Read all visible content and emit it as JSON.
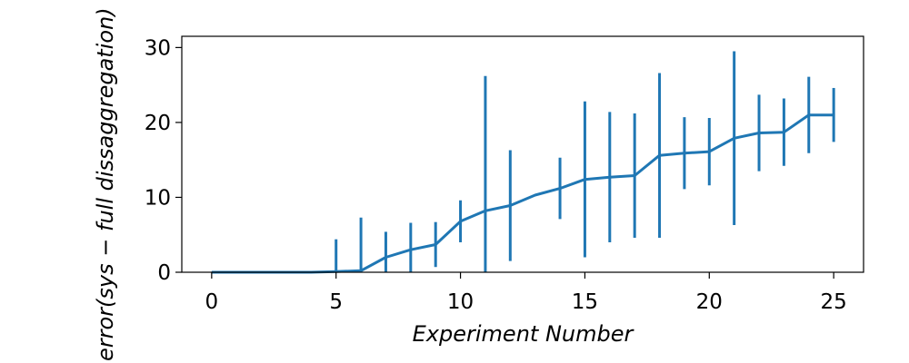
{
  "chart_data": {
    "type": "line",
    "xlabel": "Experiment Number",
    "ylabel": "error(sys − full dissaggregation)",
    "xlim": [
      -1.2,
      26.2
    ],
    "ylim": [
      0,
      31.5
    ],
    "xticks": [
      0,
      5,
      10,
      15,
      20,
      25
    ],
    "yticks": [
      0,
      10,
      20,
      30
    ],
    "grid": false,
    "line_color": "#1f77b4",
    "series": [
      {
        "x": [
          0,
          1,
          2,
          3,
          4,
          5,
          6,
          7,
          8,
          9,
          10,
          11,
          12,
          13,
          14,
          15,
          16,
          17,
          18,
          19,
          20,
          21,
          22,
          23,
          24,
          25
        ],
        "values": [
          0,
          0,
          0,
          0,
          0,
          0.1,
          0.2,
          2.0,
          3.0,
          3.7,
          6.8,
          8.2,
          8.9,
          10.3,
          11.2,
          12.4,
          12.7,
          12.9,
          15.6,
          15.9,
          16.1,
          17.9,
          18.6,
          18.7,
          21.0,
          21.0
        ],
        "errors": [
          0,
          0,
          0,
          0,
          0,
          4.3,
          7.1,
          3.4,
          3.6,
          3.0,
          2.8,
          18.0,
          7.4,
          0,
          4.1,
          10.4,
          8.7,
          8.3,
          11.0,
          4.8,
          4.5,
          11.6,
          5.1,
          4.5,
          5.1,
          3.6
        ]
      }
    ]
  }
}
